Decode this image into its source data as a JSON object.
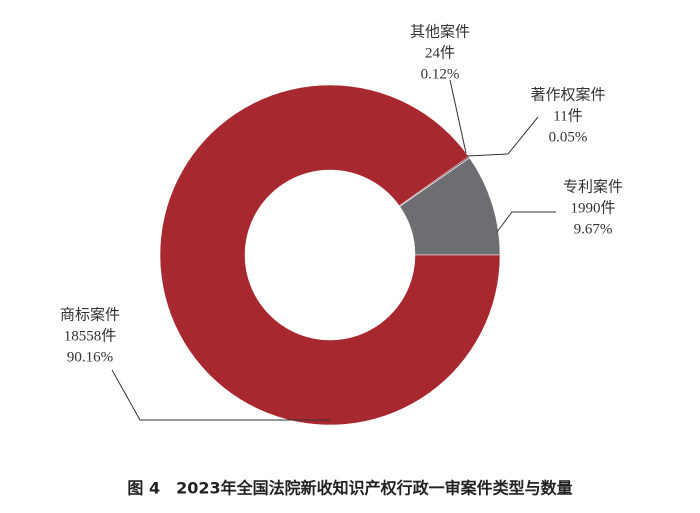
{
  "chart_data": {
    "type": "donut",
    "title": "图 4　2023年全国法院新收知识产权行政一审案件类型与数量",
    "categories": [
      "专利案件",
      "著作权案件",
      "其他案件",
      "商标案件"
    ],
    "values": [
      1990,
      11,
      24,
      18558
    ],
    "value_labels": [
      "1990件",
      "11件",
      "24件",
      "18558件"
    ],
    "percents": [
      9.67,
      0.05,
      0.12,
      90.16
    ],
    "percent_labels": [
      "9.67%",
      "0.05%",
      "0.12%",
      "90.16%"
    ],
    "colors": [
      "#6d6e71",
      "#3a2a2a",
      "#5a1a1e",
      "#a8282f"
    ]
  }
}
